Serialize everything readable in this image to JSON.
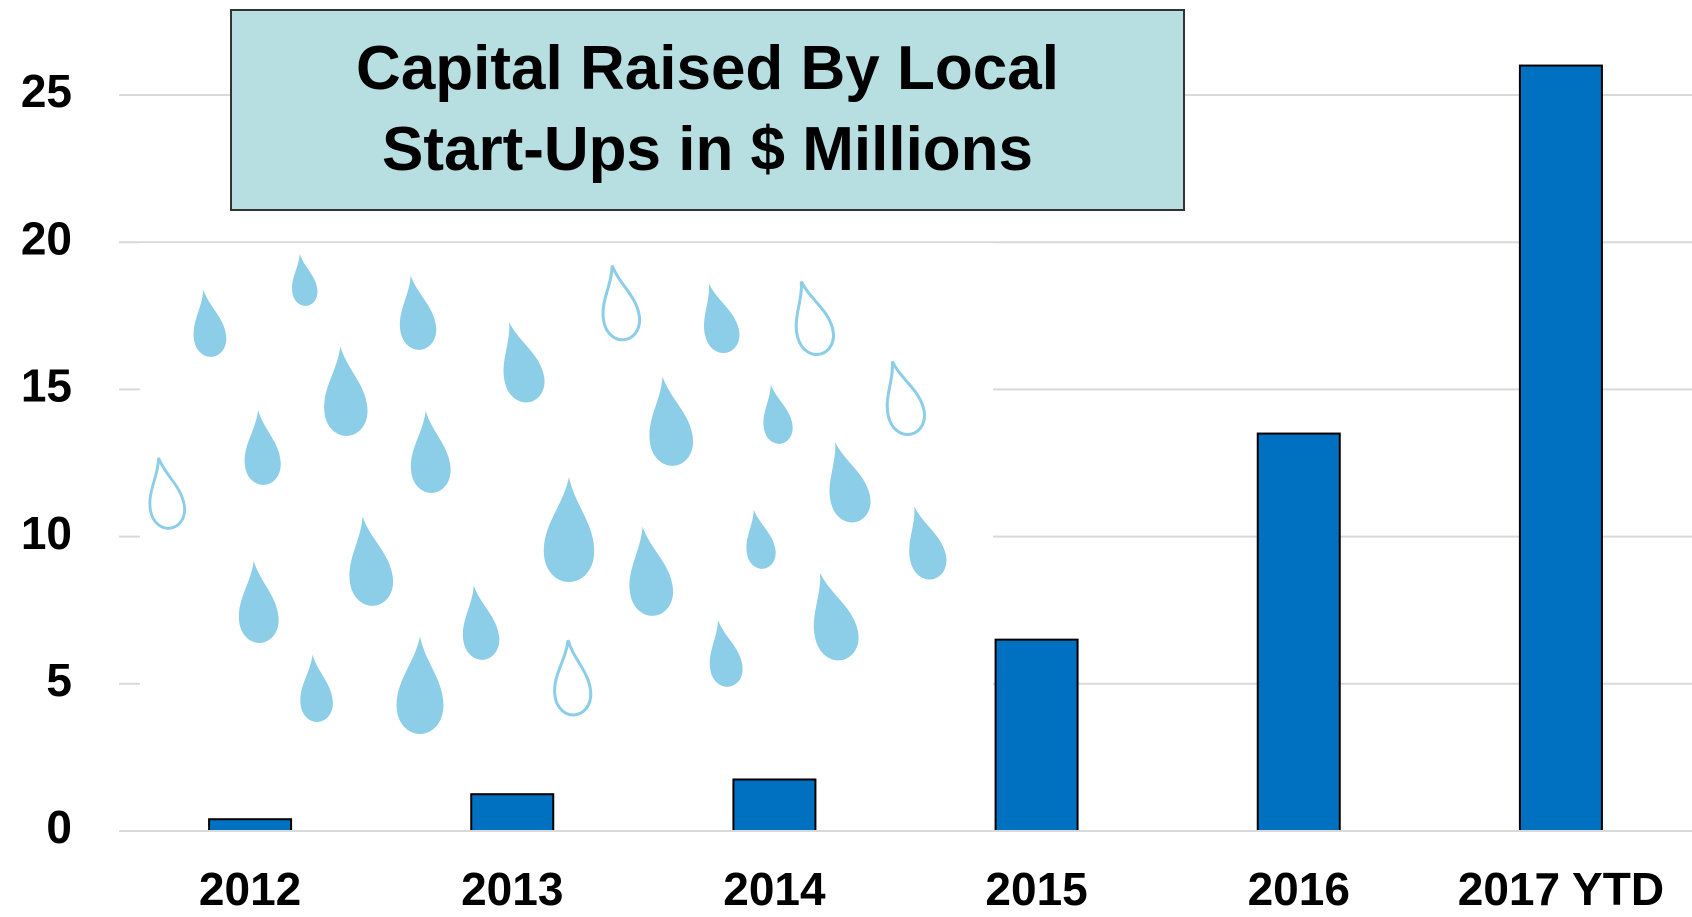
{
  "chart_data": {
    "type": "bar",
    "title": "Capital Raised By Local Start-Ups in $ Millions",
    "categories": [
      "2012",
      "2013",
      "2014",
      "2015",
      "2016",
      "2017 YTD"
    ],
    "values": [
      0.4,
      1.25,
      1.75,
      6.5,
      13.5,
      26
    ],
    "color": "#0070c0",
    "ylim": [
      0,
      25
    ],
    "yticks": [
      0,
      5,
      10,
      15,
      20,
      25
    ],
    "grid": true
  }
}
